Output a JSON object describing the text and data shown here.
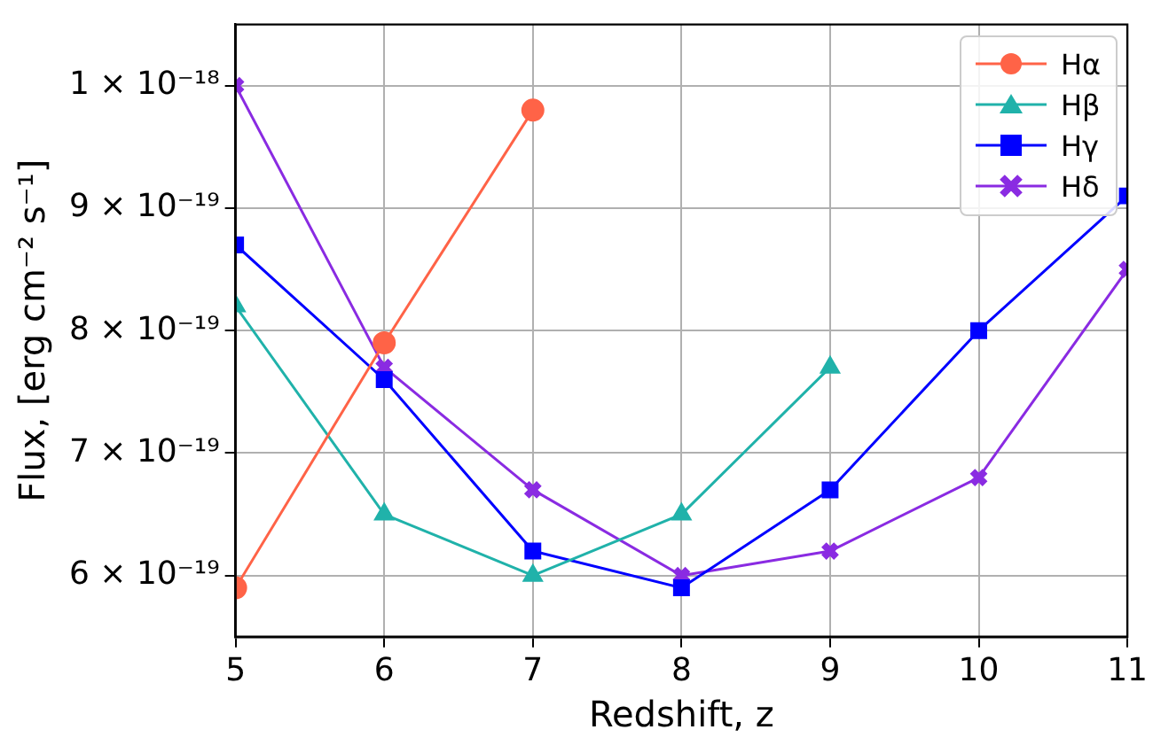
{
  "chart_data": {
    "type": "line",
    "xlabel": "Redshift, z",
    "ylabel": "Flux, [erg cm⁻² s⁻¹]",
    "xlim": [
      5,
      11
    ],
    "xticks": [
      5,
      6,
      7,
      8,
      9,
      10,
      11
    ],
    "ylim": [
      5.5e-19,
      1.05e-18
    ],
    "yticks": [
      {
        "value": 6e-19,
        "label": "6 × 10⁻¹⁹"
      },
      {
        "value": 7e-19,
        "label": "7 × 10⁻¹⁹"
      },
      {
        "value": 8e-19,
        "label": "8 × 10⁻¹⁹"
      },
      {
        "value": 9e-19,
        "label": "9 × 10⁻¹⁹"
      },
      {
        "value": 1e-18,
        "label": "1 × 10⁻¹⁸"
      }
    ],
    "grid": true,
    "legend": "top right",
    "line_style": "solid",
    "series": [
      {
        "name": "Hα",
        "color": "#ff6347",
        "marker": "circle",
        "x": [
          5,
          6,
          7
        ],
        "values": [
          5.9e-19,
          7.9e-19,
          9.8e-19
        ]
      },
      {
        "name": "Hβ",
        "color": "#20b2aa",
        "marker": "triangle",
        "x": [
          5,
          6,
          7,
          8,
          9
        ],
        "values": [
          8.2e-19,
          6.5e-19,
          6e-19,
          6.5e-19,
          7.7e-19
        ]
      },
      {
        "name": "Hγ",
        "color": "#0000ff",
        "marker": "square",
        "x": [
          5,
          6,
          7,
          8,
          9,
          10,
          11
        ],
        "values": [
          8.7e-19,
          7.6e-19,
          6.2e-19,
          5.9e-19,
          6.7e-19,
          8e-19,
          9.1e-19
        ]
      },
      {
        "name": "Hδ",
        "color": "#8a2be2",
        "marker": "cross",
        "x": [
          5,
          6,
          7,
          8,
          9,
          10,
          11
        ],
        "values": [
          1e-18,
          7.7e-19,
          6.7e-19,
          6e-19,
          6.2e-19,
          6.8e-19,
          8.5e-19
        ]
      }
    ]
  }
}
